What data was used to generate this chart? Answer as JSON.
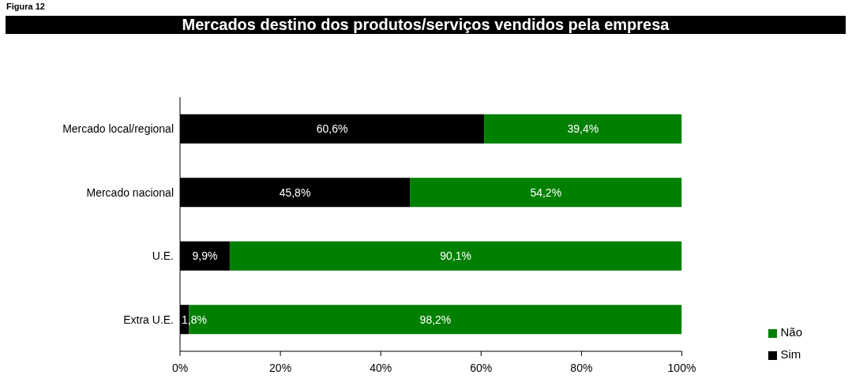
{
  "chart_data": {
    "type": "bar",
    "orientation": "horizontal",
    "stacked": true,
    "title": "Mercados destino dos produtos/serviços vendidos pela empresa",
    "annotations": [
      "Figura 12"
    ],
    "categories": [
      "Mercado local/regional",
      "Mercado nacional",
      "U.E.",
      "Extra U.E."
    ],
    "series": [
      {
        "name": "Sim",
        "color": "#000000",
        "values": [
          60.6,
          45.8,
          9.9,
          1.8
        ],
        "value_labels": [
          "60,6%",
          "45,8%",
          "9,9%",
          "1,8%"
        ]
      },
      {
        "name": "Não",
        "color": "#008000",
        "values": [
          39.4,
          54.2,
          90.1,
          98.2
        ],
        "value_labels": [
          "39,4%",
          "54,2%",
          "90,1%",
          "98,2%"
        ]
      }
    ],
    "xlim": [
      0,
      100
    ],
    "xticks": [
      {
        "value": 0,
        "label": "0%"
      },
      {
        "value": 20,
        "label": "20%"
      },
      {
        "value": 40,
        "label": "40%"
      },
      {
        "value": 60,
        "label": "60%"
      },
      {
        "value": 80,
        "label": "80%"
      },
      {
        "value": 100,
        "label": "100%"
      }
    ],
    "grid": false,
    "legend": "bottom right"
  }
}
